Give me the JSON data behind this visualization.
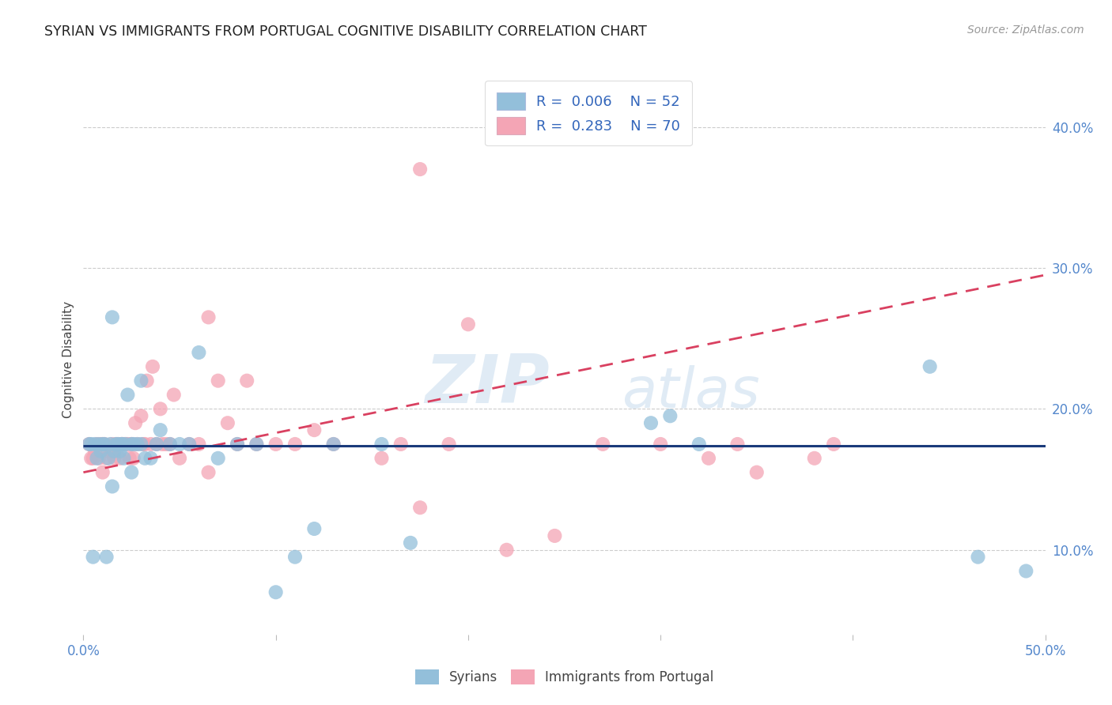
{
  "title": "SYRIAN VS IMMIGRANTS FROM PORTUGAL COGNITIVE DISABILITY CORRELATION CHART",
  "source": "Source: ZipAtlas.com",
  "ylabel": "Cognitive Disability",
  "xlim": [
    0.0,
    0.5
  ],
  "ylim": [
    0.04,
    0.43
  ],
  "xtick_positions": [
    0.0,
    0.1,
    0.2,
    0.3,
    0.4,
    0.5
  ],
  "xticklabels": [
    "0.0%",
    "",
    "",
    "",
    "",
    "50.0%"
  ],
  "ytick_positions": [
    0.1,
    0.2,
    0.3,
    0.4
  ],
  "yticklabels": [
    "10.0%",
    "20.0%",
    "30.0%",
    "40.0%"
  ],
  "grid_color": "#cccccc",
  "background_color": "#ffffff",
  "syrians_color": "#93bfda",
  "portugal_color": "#f4a5b5",
  "syrians_line_color": "#1a3a7a",
  "portugal_line_color": "#d94060",
  "legend_color": "#3366bb",
  "syrians_x": [
    0.003,
    0.004,
    0.005,
    0.006,
    0.007,
    0.008,
    0.009,
    0.01,
    0.011,
    0.012,
    0.013,
    0.014,
    0.015,
    0.016,
    0.017,
    0.018,
    0.019,
    0.02,
    0.021,
    0.022,
    0.023,
    0.025,
    0.026,
    0.028,
    0.03,
    0.032,
    0.035,
    0.038,
    0.04,
    0.045,
    0.05,
    0.055,
    0.06,
    0.07,
    0.08,
    0.09,
    0.1,
    0.11,
    0.12,
    0.13,
    0.155,
    0.17,
    0.295,
    0.305,
    0.32,
    0.44,
    0.465,
    0.49,
    0.015,
    0.02,
    0.025,
    0.03
  ],
  "syrians_y": [
    0.175,
    0.175,
    0.095,
    0.175,
    0.165,
    0.175,
    0.17,
    0.175,
    0.175,
    0.095,
    0.165,
    0.175,
    0.145,
    0.17,
    0.175,
    0.175,
    0.17,
    0.175,
    0.165,
    0.175,
    0.21,
    0.155,
    0.175,
    0.175,
    0.22,
    0.165,
    0.165,
    0.175,
    0.185,
    0.175,
    0.175,
    0.175,
    0.24,
    0.165,
    0.175,
    0.175,
    0.07,
    0.095,
    0.115,
    0.175,
    0.175,
    0.105,
    0.19,
    0.195,
    0.175,
    0.23,
    0.095,
    0.085,
    0.265,
    0.175,
    0.175,
    0.175
  ],
  "portugal_x": [
    0.003,
    0.004,
    0.005,
    0.006,
    0.007,
    0.008,
    0.009,
    0.01,
    0.011,
    0.012,
    0.013,
    0.015,
    0.016,
    0.017,
    0.018,
    0.019,
    0.02,
    0.021,
    0.022,
    0.023,
    0.024,
    0.025,
    0.026,
    0.027,
    0.028,
    0.03,
    0.031,
    0.032,
    0.033,
    0.035,
    0.036,
    0.038,
    0.04,
    0.041,
    0.043,
    0.045,
    0.047,
    0.05,
    0.055,
    0.06,
    0.065,
    0.07,
    0.075,
    0.08,
    0.085,
    0.09,
    0.1,
    0.11,
    0.12,
    0.13,
    0.155,
    0.165,
    0.175,
    0.19,
    0.2,
    0.22,
    0.245,
    0.27,
    0.3,
    0.325,
    0.34,
    0.38,
    0.39,
    0.01,
    0.015,
    0.02,
    0.025,
    0.35,
    0.065,
    0.175
  ],
  "portugal_y": [
    0.175,
    0.165,
    0.165,
    0.17,
    0.175,
    0.165,
    0.175,
    0.155,
    0.175,
    0.165,
    0.17,
    0.175,
    0.165,
    0.175,
    0.175,
    0.165,
    0.175,
    0.175,
    0.175,
    0.175,
    0.165,
    0.175,
    0.165,
    0.19,
    0.175,
    0.195,
    0.175,
    0.175,
    0.22,
    0.175,
    0.23,
    0.175,
    0.2,
    0.175,
    0.175,
    0.175,
    0.21,
    0.165,
    0.175,
    0.175,
    0.265,
    0.22,
    0.19,
    0.175,
    0.22,
    0.175,
    0.175,
    0.175,
    0.185,
    0.175,
    0.165,
    0.175,
    0.13,
    0.175,
    0.26,
    0.1,
    0.11,
    0.175,
    0.175,
    0.165,
    0.175,
    0.165,
    0.175,
    0.175,
    0.17,
    0.175,
    0.175,
    0.155,
    0.155,
    0.37
  ]
}
